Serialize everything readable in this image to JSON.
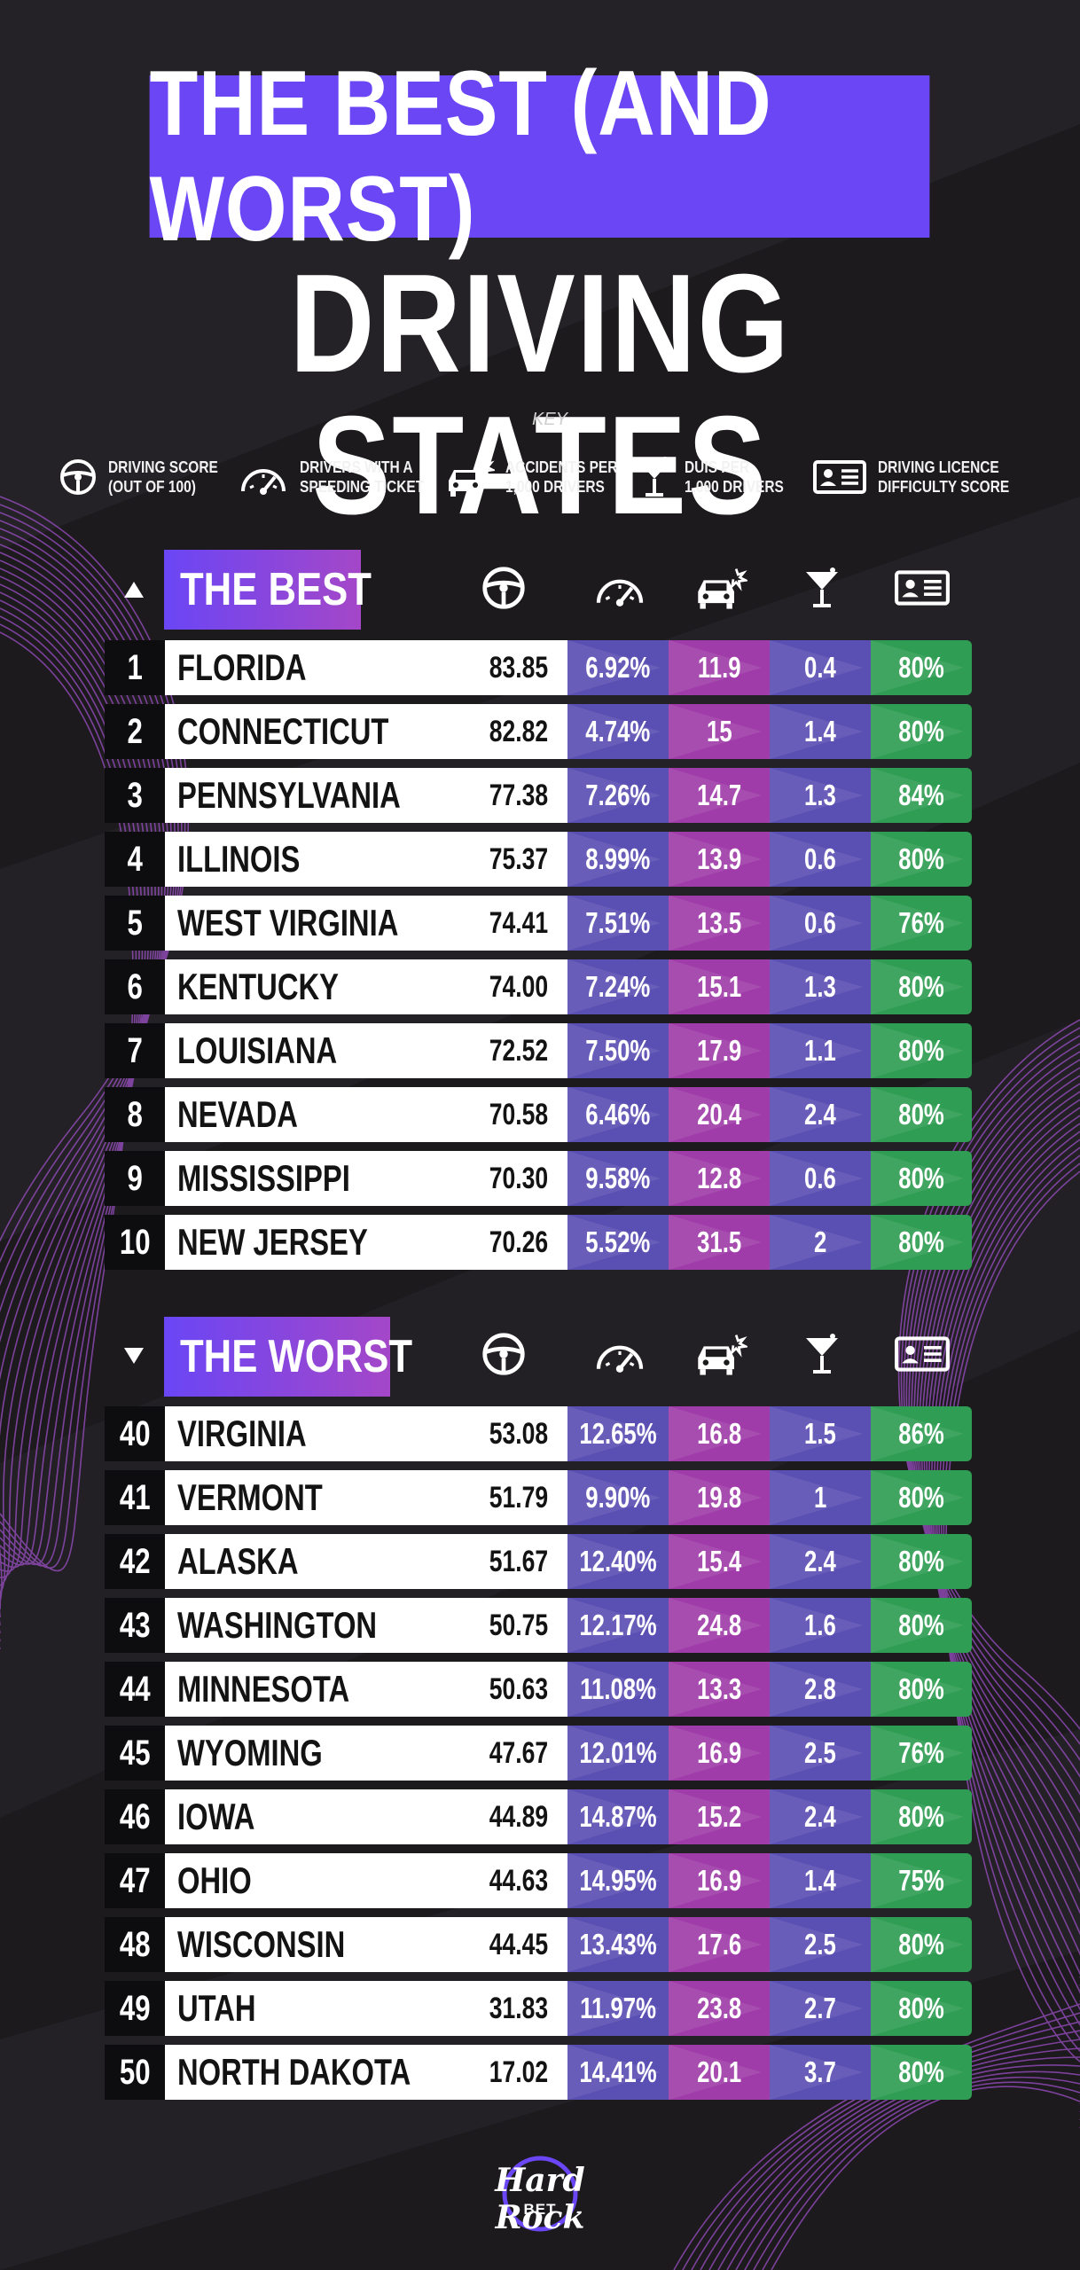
{
  "title_line1": "THE BEST (AND WORST)",
  "title_line2": "DRIVING STATES",
  "key": {
    "label": "KEY",
    "items": [
      {
        "icon": "steering-wheel-icon",
        "text": "DRIVING SCORE\n(OUT OF 100)"
      },
      {
        "icon": "speedometer-icon",
        "text": "DRIVERS WITH A\nSPEEDING TICKET"
      },
      {
        "icon": "car-crash-icon",
        "text": "ACCIDENTS PER\n1,000 DRIVERS"
      },
      {
        "icon": "cocktail-glass-icon",
        "text": "DUIS PER\n1,000 DRIVERS"
      },
      {
        "icon": "licence-card-icon",
        "text": "DRIVING LICENCE\nDIFFICULTY SCORE"
      }
    ]
  },
  "best": {
    "label": "THE BEST",
    "rows": [
      {
        "rank": "1",
        "state": "FLORIDA",
        "score": "83.85",
        "speeding": "6.92%",
        "accidents": "11.9",
        "duis": "0.4",
        "licence": "80%"
      },
      {
        "rank": "2",
        "state": "CONNECTICUT",
        "score": "82.82",
        "speeding": "4.74%",
        "accidents": "15",
        "duis": "1.4",
        "licence": "80%"
      },
      {
        "rank": "3",
        "state": "PENNSYLVANIA",
        "score": "77.38",
        "speeding": "7.26%",
        "accidents": "14.7",
        "duis": "1.3",
        "licence": "84%"
      },
      {
        "rank": "4",
        "state": "ILLINOIS",
        "score": "75.37",
        "speeding": "8.99%",
        "accidents": "13.9",
        "duis": "0.6",
        "licence": "80%"
      },
      {
        "rank": "5",
        "state": "WEST VIRGINIA",
        "score": "74.41",
        "speeding": "7.51%",
        "accidents": "13.5",
        "duis": "0.6",
        "licence": "76%"
      },
      {
        "rank": "6",
        "state": "KENTUCKY",
        "score": "74.00",
        "speeding": "7.24%",
        "accidents": "15.1",
        "duis": "1.3",
        "licence": "80%"
      },
      {
        "rank": "7",
        "state": "LOUISIANA",
        "score": "72.52",
        "speeding": "7.50%",
        "accidents": "17.9",
        "duis": "1.1",
        "licence": "80%"
      },
      {
        "rank": "8",
        "state": "NEVADA",
        "score": "70.58",
        "speeding": "6.46%",
        "accidents": "20.4",
        "duis": "2.4",
        "licence": "80%"
      },
      {
        "rank": "9",
        "state": "MISSISSIPPI",
        "score": "70.30",
        "speeding": "9.58%",
        "accidents": "12.8",
        "duis": "0.6",
        "licence": "80%"
      },
      {
        "rank": "10",
        "state": "NEW JERSEY",
        "score": "70.26",
        "speeding": "5.52%",
        "accidents": "31.5",
        "duis": "2",
        "licence": "80%"
      }
    ]
  },
  "worst": {
    "label": "THE WORST",
    "rows": [
      {
        "rank": "40",
        "state": "VIRGINIA",
        "score": "53.08",
        "speeding": "12.65%",
        "accidents": "16.8",
        "duis": "1.5",
        "licence": "86%"
      },
      {
        "rank": "41",
        "state": "VERMONT",
        "score": "51.79",
        "speeding": "9.90%",
        "accidents": "19.8",
        "duis": "1",
        "licence": "80%"
      },
      {
        "rank": "42",
        "state": "ALASKA",
        "score": "51.67",
        "speeding": "12.40%",
        "accidents": "15.4",
        "duis": "2.4",
        "licence": "80%"
      },
      {
        "rank": "43",
        "state": "WASHINGTON",
        "score": "50.75",
        "speeding": "12.17%",
        "accidents": "24.8",
        "duis": "1.6",
        "licence": "80%"
      },
      {
        "rank": "44",
        "state": "MINNESOTA",
        "score": "50.63",
        "speeding": "11.08%",
        "accidents": "13.3",
        "duis": "2.8",
        "licence": "80%"
      },
      {
        "rank": "45",
        "state": "WYOMING",
        "score": "47.67",
        "speeding": "12.01%",
        "accidents": "16.9",
        "duis": "2.5",
        "licence": "76%"
      },
      {
        "rank": "46",
        "state": "IOWA",
        "score": "44.89",
        "speeding": "14.87%",
        "accidents": "15.2",
        "duis": "2.4",
        "licence": "80%"
      },
      {
        "rank": "47",
        "state": "OHIO",
        "score": "44.63",
        "speeding": "14.95%",
        "accidents": "16.9",
        "duis": "1.4",
        "licence": "75%"
      },
      {
        "rank": "48",
        "state": "WISCONSIN",
        "score": "44.45",
        "speeding": "13.43%",
        "accidents": "17.6",
        "duis": "2.5",
        "licence": "80%"
      },
      {
        "rank": "49",
        "state": "UTAH",
        "score": "31.83",
        "speeding": "11.97%",
        "accidents": "23.8",
        "duis": "2.7",
        "licence": "80%"
      },
      {
        "rank": "50",
        "state": "NORTH DAKOTA",
        "score": "17.02",
        "speeding": "14.41%",
        "accidents": "20.1",
        "duis": "3.7",
        "licence": "80%"
      }
    ]
  },
  "logo": {
    "main": "Hard Rock",
    "sub": "BET"
  },
  "colors": {
    "background": "#1c1a1d",
    "banner": "#6a46f5",
    "speeding_col": "#5a4fb2",
    "accidents_col": "#a03ca9",
    "duis_col": "#5a4fb2",
    "licence_col": "#2f9d53",
    "swirl": "#a65bd0"
  }
}
